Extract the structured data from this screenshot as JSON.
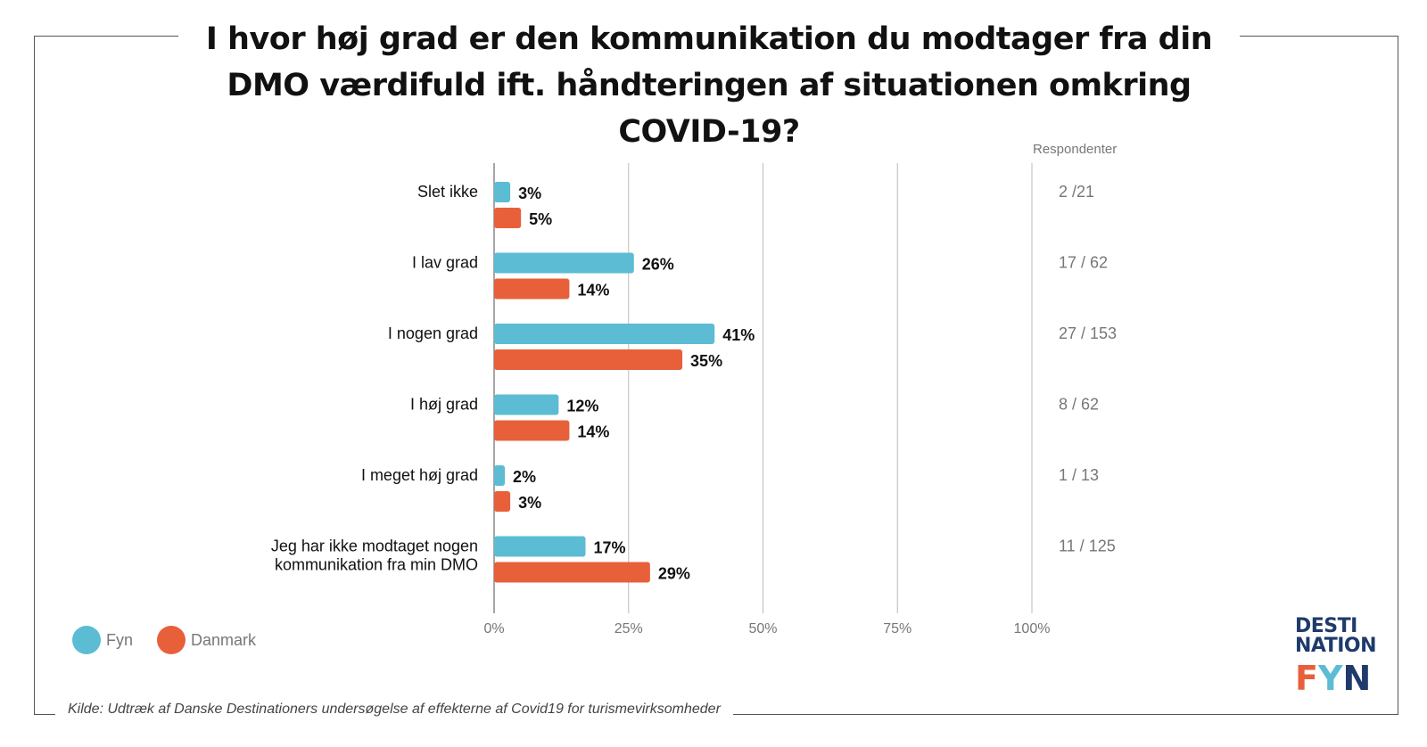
{
  "title": "I hvor høj grad er den kommunikation du modtager fra din DMO værdifuld ift. håndteringen af situationen omkring COVID-19?",
  "source": "Kilde: Udtræk af Danske Destinationers undersøgelse af effekterne af Covid19 for turismevirksomheder",
  "colors": {
    "fyn": "#5bbcd3",
    "danmark": "#e8603a",
    "grid": "#bbbbbb",
    "logo_navy": "#1f3a6b"
  },
  "logo": {
    "line1": "DESTI",
    "line2": "NATION",
    "fyn_letters": [
      {
        "char": "F",
        "color": "#e8603a"
      },
      {
        "char": "Y",
        "color": "#5bbcd3"
      },
      {
        "char": "N",
        "color": "#1f3a6b"
      }
    ]
  },
  "chart_data": {
    "type": "bar",
    "orientation": "horizontal",
    "title": "I hvor høj grad er den kommunikation du modtager fra din DMO værdifuld ift. håndteringen af situationen omkring COVID-19?",
    "categories": [
      "Slet ikke",
      "I lav grad",
      "I nogen grad",
      "I høj grad",
      "I meget høj grad",
      "Jeg har ikke modtaget nogen kommunikation fra min DMO"
    ],
    "category_lines": [
      [
        "Slet ikke"
      ],
      [
        "I lav grad"
      ],
      [
        "I nogen grad"
      ],
      [
        "I høj grad"
      ],
      [
        "I meget høj grad"
      ],
      [
        "Jeg har ikke modtaget nogen",
        "kommunikation fra min DMO"
      ]
    ],
    "series": [
      {
        "name": "Fyn",
        "values": [
          3,
          26,
          41,
          12,
          2,
          17
        ],
        "labels": [
          "3%",
          "26%",
          "41%",
          "12%",
          "2%",
          "17%"
        ]
      },
      {
        "name": "Danmark",
        "values": [
          5,
          14,
          35,
          14,
          3,
          29
        ],
        "labels": [
          "5%",
          "14%",
          "35%",
          "14%",
          "3%",
          "29%"
        ]
      }
    ],
    "xlim": [
      0,
      100
    ],
    "xticks": [
      0,
      25,
      50,
      75,
      100
    ],
    "xtick_labels": [
      "0%",
      "25%",
      "50%",
      "75%",
      "100%"
    ],
    "grid": true,
    "legend": "bottom-left",
    "respondents_header": "Respondenter",
    "respondents": [
      "2 /21",
      "17 / 62",
      "27 / 153",
      "8 / 62",
      "1 / 13",
      "11 / 125"
    ]
  }
}
